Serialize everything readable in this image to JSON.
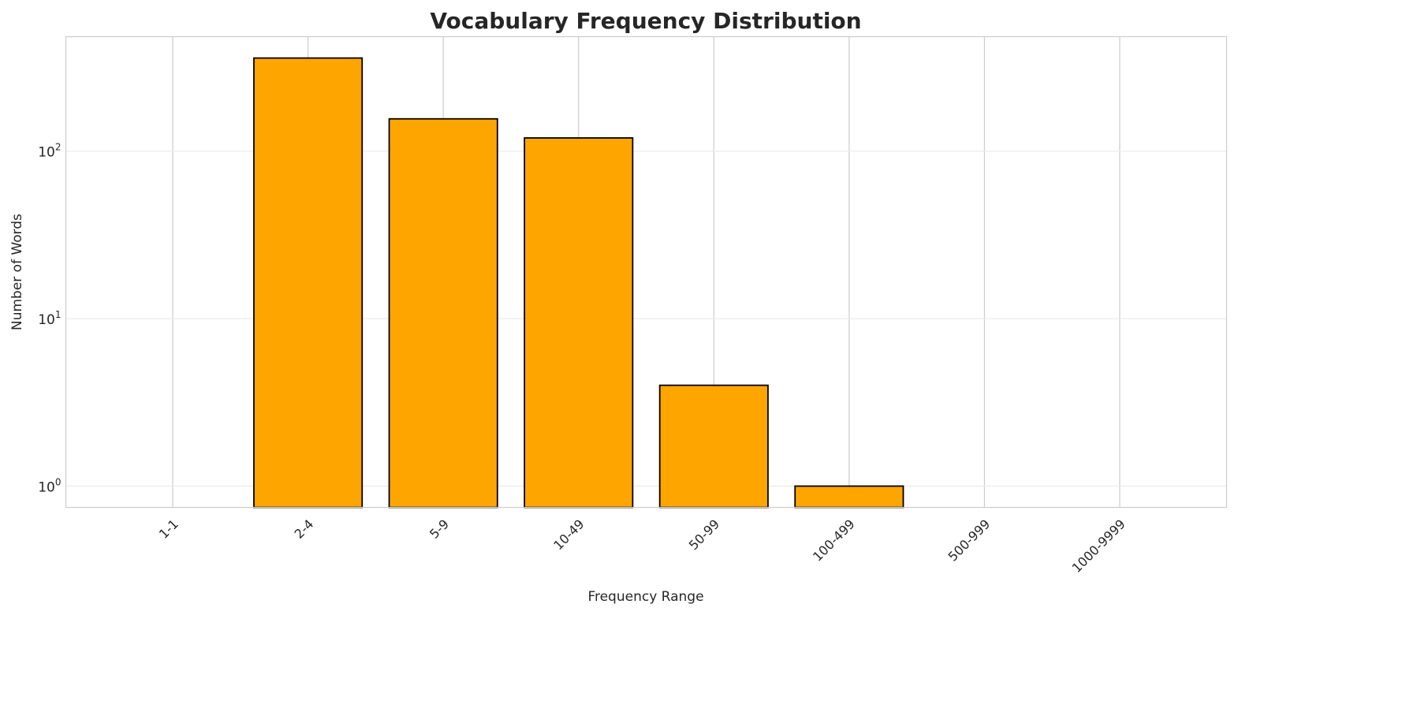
{
  "chart_data": {
    "type": "bar",
    "title": "Vocabulary Frequency Distribution",
    "xlabel": "Frequency Range",
    "ylabel": "Number of Words",
    "yscale": "log",
    "categories": [
      "1-1",
      "2-4",
      "5-9",
      "10-49",
      "50-99",
      "100-499",
      "500-999",
      "1000-9999"
    ],
    "values": [
      0,
      360,
      156,
      120,
      4,
      1,
      0,
      0
    ],
    "ylim": [
      0.746,
      483
    ],
    "yticks": [
      {
        "value": 1,
        "base": "10",
        "exp": "0"
      },
      {
        "value": 10,
        "base": "10",
        "exp": "1"
      },
      {
        "value": 100,
        "base": "10",
        "exp": "2"
      }
    ],
    "grid": true,
    "bar_color": "#FFA500",
    "edge_color": "#000000"
  }
}
